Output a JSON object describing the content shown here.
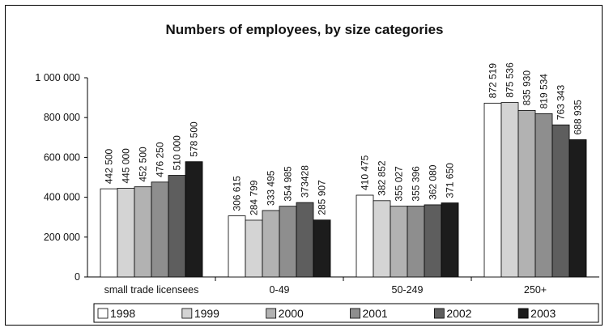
{
  "chart_data": {
    "type": "bar",
    "title": "Numbers of employees, by size categories",
    "xlabel": "",
    "ylabel": "",
    "ylim": [
      0,
      1000000
    ],
    "y_ticks": [
      0,
      200000,
      400000,
      600000,
      800000,
      1000000
    ],
    "y_tick_labels": [
      "0",
      "200 000",
      "400 000",
      "600 000",
      "800 000",
      "1 000 000"
    ],
    "categories": [
      "small trade licensees",
      "0-49",
      "50-249",
      "250+"
    ],
    "legend_position": "bottom",
    "grid": false,
    "series": [
      {
        "name": "1998",
        "color": "#ffffff",
        "values": [
          442500,
          306615,
          410475,
          872519
        ],
        "labels": [
          "442 500",
          "306 615",
          "410 475",
          "872 519"
        ]
      },
      {
        "name": "1999",
        "color": "#d4d4d4",
        "values": [
          445000,
          284799,
          382852,
          875536
        ],
        "labels": [
          "445 000",
          "284 799",
          "382 852",
          "875 536"
        ]
      },
      {
        "name": "2000",
        "color": "#b2b2b2",
        "values": [
          452500,
          333495,
          355027,
          835930
        ],
        "labels": [
          "452 500",
          "333 495",
          "355 027",
          "835 930"
        ]
      },
      {
        "name": "2001",
        "color": "#8e8e8e",
        "values": [
          476250,
          354985,
          355396,
          819534
        ],
        "labels": [
          "476 250",
          "354 985",
          "355 396",
          "819 534"
        ]
      },
      {
        "name": "2002",
        "color": "#5e5e5e",
        "values": [
          510000,
          373428,
          362080,
          763343
        ],
        "labels": [
          "510 000",
          "373428",
          "362 080",
          "763 343"
        ]
      },
      {
        "name": "2003",
        "color": "#1c1c1c",
        "values": [
          578500,
          285907,
          371650,
          688935
        ],
        "labels": [
          "578 500",
          "285 907",
          "371 650",
          "688 935"
        ]
      }
    ]
  }
}
